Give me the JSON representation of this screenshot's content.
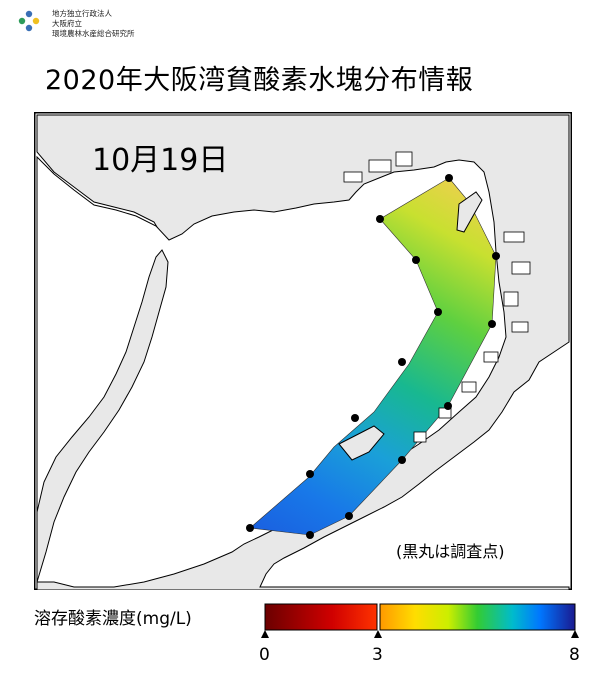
{
  "organization": {
    "line1": "地方独立行政法人",
    "line2": "大阪府立",
    "line3": "環境農林水産総合研究所"
  },
  "title": "2020年大阪湾貧酸素水塊分布情報",
  "map": {
    "date_label": "10月19日",
    "note": "(黒丸は調査点)",
    "water_color": "#ffffff",
    "land_color": "#e8e8e8",
    "station_color": "#000000"
  },
  "legend": {
    "label": "溶存酸素濃度(mg/L)",
    "ticks": [
      "0",
      "3",
      "8"
    ],
    "min": 0,
    "threshold": 3,
    "max": 8,
    "colors": [
      "#6b0000",
      "#ff0000",
      "#ff9900",
      "#ffff00",
      "#33cc33",
      "#0099ff",
      "#2233ff",
      "#1a1a80"
    ]
  }
}
